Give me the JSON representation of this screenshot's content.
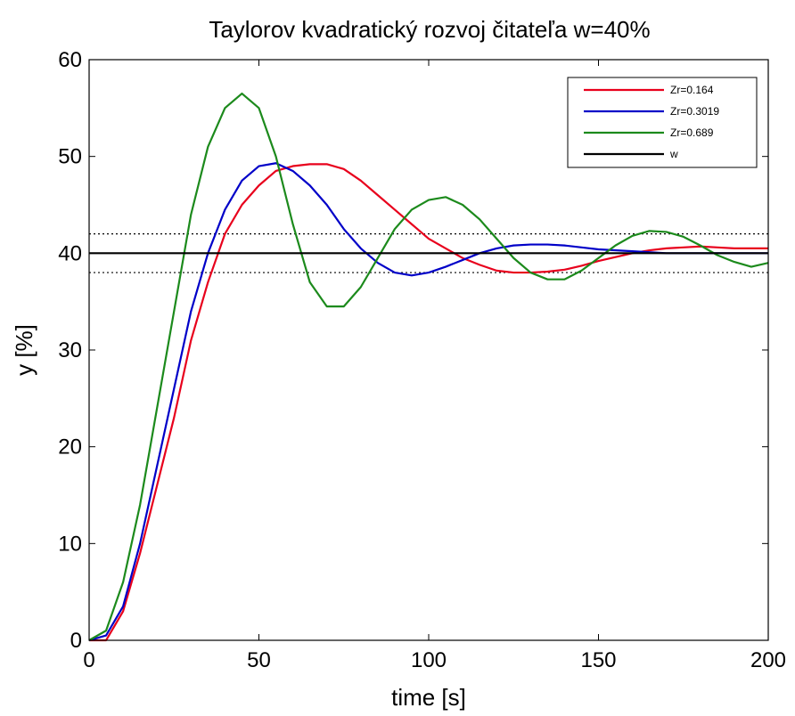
{
  "chart_data": {
    "type": "line",
    "title": "Taylorov kvadratický rozvoj čitateľa w=40%",
    "xlabel": "time [s]",
    "ylabel": "y [%]",
    "xlim": [
      0,
      200
    ],
    "ylim": [
      0,
      60
    ],
    "xticks": [
      0,
      50,
      100,
      150,
      200
    ],
    "yticks": [
      0,
      10,
      20,
      30,
      40,
      50,
      60
    ],
    "grid": false,
    "legend_position": "top-right",
    "series": [
      {
        "name": "Zr=0.164",
        "color": "#e8001c",
        "x": [
          0,
          5,
          10,
          15,
          20,
          25,
          30,
          35,
          40,
          45,
          50,
          55,
          60,
          65,
          70,
          75,
          80,
          85,
          90,
          95,
          100,
          105,
          110,
          115,
          120,
          125,
          130,
          135,
          140,
          145,
          150,
          155,
          160,
          165,
          170,
          175,
          180,
          185,
          190,
          195,
          200
        ],
        "y": [
          0,
          0,
          3,
          9,
          16,
          23,
          31,
          37,
          42,
          45,
          47,
          48.5,
          49,
          49.2,
          49.2,
          48.7,
          47.5,
          46,
          44.5,
          43,
          41.5,
          40.5,
          39.5,
          38.8,
          38.2,
          38,
          38,
          38.1,
          38.3,
          38.7,
          39.2,
          39.6,
          40,
          40.3,
          40.5,
          40.6,
          40.7,
          40.6,
          40.5,
          40.5,
          40.5
        ]
      },
      {
        "name": "Zr=0.3019",
        "color": "#0000c8",
        "x": [
          0,
          5,
          10,
          15,
          20,
          25,
          30,
          35,
          40,
          45,
          50,
          55,
          60,
          65,
          70,
          75,
          80,
          85,
          90,
          95,
          100,
          105,
          110,
          115,
          120,
          125,
          130,
          135,
          140,
          145,
          150,
          160,
          170,
          180,
          190,
          200
        ],
        "y": [
          0,
          0.5,
          3.5,
          10,
          18,
          26,
          34,
          40,
          44.5,
          47.5,
          49,
          49.3,
          48.5,
          47,
          45,
          42.5,
          40.5,
          39,
          38,
          37.7,
          38,
          38.6,
          39.3,
          40,
          40.5,
          40.8,
          40.9,
          40.9,
          40.8,
          40.6,
          40.4,
          40.2,
          40,
          40,
          40,
          40
        ]
      },
      {
        "name": "Zr=0.689",
        "color": "#1c8a1c",
        "x": [
          0,
          5,
          10,
          15,
          20,
          25,
          30,
          35,
          40,
          45,
          50,
          55,
          60,
          65,
          70,
          75,
          80,
          85,
          90,
          95,
          100,
          105,
          110,
          115,
          120,
          125,
          130,
          135,
          140,
          145,
          150,
          155,
          160,
          165,
          170,
          175,
          180,
          185,
          190,
          195,
          200
        ],
        "y": [
          0,
          1,
          6,
          14,
          24,
          34,
          44,
          51,
          55,
          56.5,
          55,
          50,
          43,
          37,
          34.5,
          34.5,
          36.5,
          39.5,
          42.5,
          44.5,
          45.5,
          45.8,
          45,
          43.5,
          41.5,
          39.5,
          38,
          37.3,
          37.3,
          38.2,
          39.5,
          40.8,
          41.8,
          42.3,
          42.2,
          41.7,
          40.8,
          39.8,
          39.1,
          38.6,
          39
        ]
      },
      {
        "name": "w",
        "color": "#000000",
        "x": [
          0,
          200
        ],
        "y": [
          40,
          40
        ]
      }
    ],
    "bands": [
      38,
      42
    ]
  }
}
